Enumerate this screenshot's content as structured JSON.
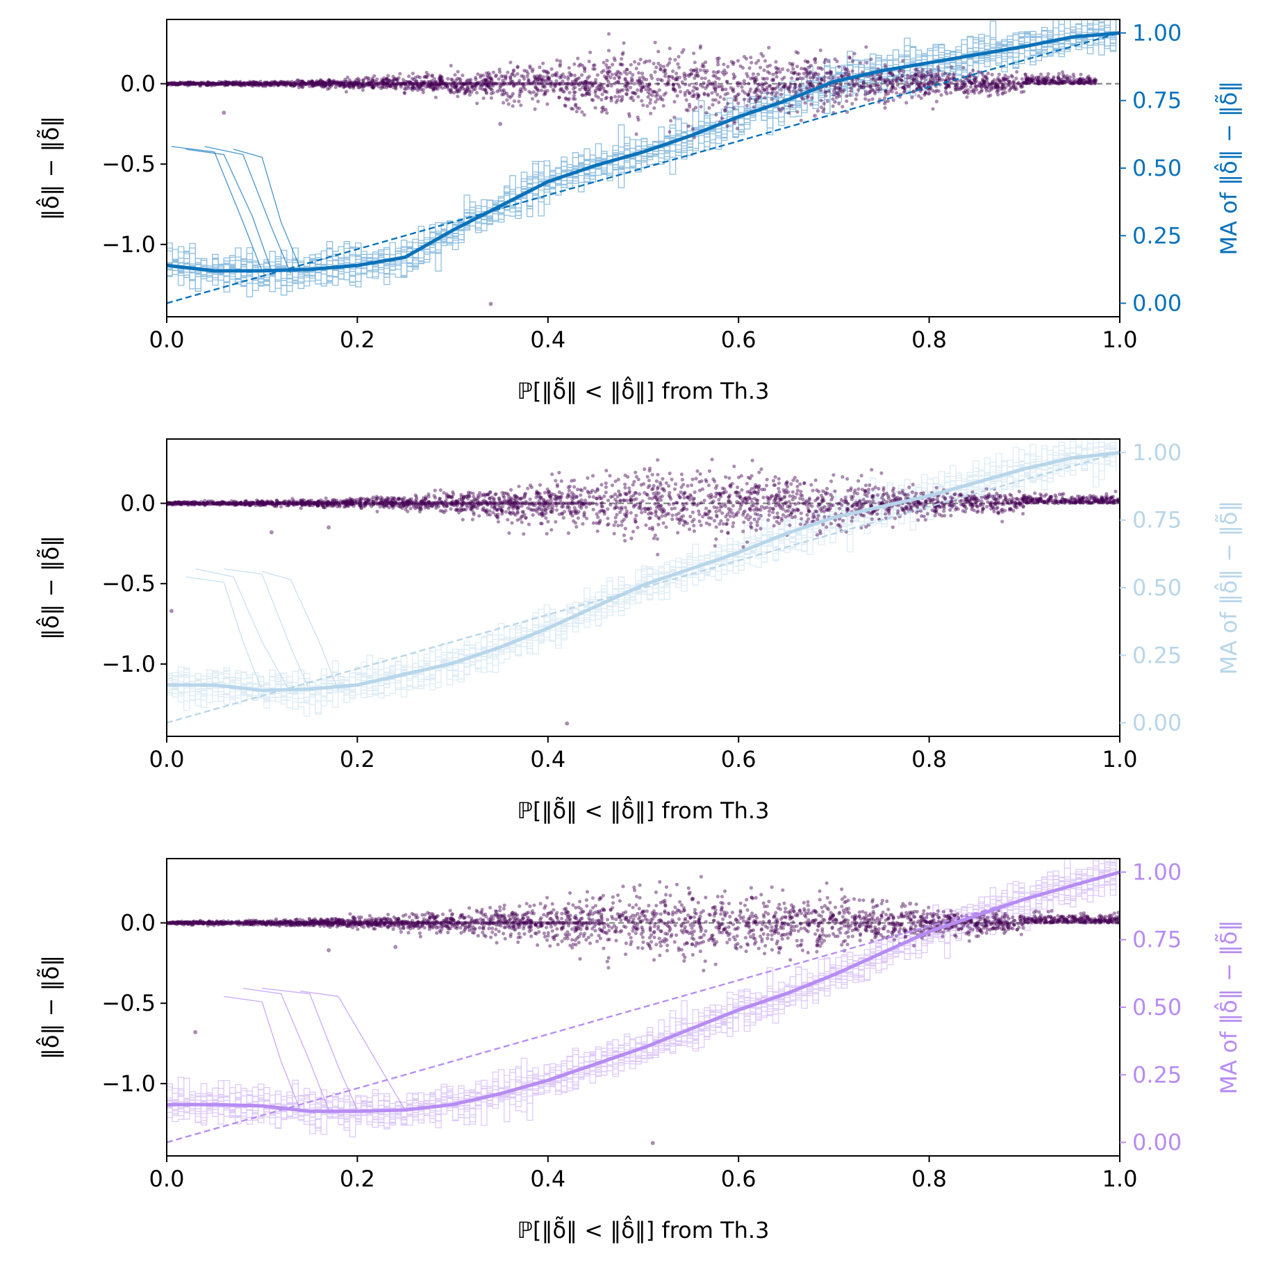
{
  "colors": {
    "scatter": "#440154",
    "ref_gray": "#808080",
    "axes": "#000000",
    "panel_colors": [
      "#0a72ba",
      "#b8d6ea",
      "#b78cf3"
    ]
  },
  "chart_data": [
    {
      "type": "scatter+line",
      "panel": 1,
      "accent": "#0a72ba",
      "xlabel": "ℙ[‖δ̃‖ < ‖δ̂‖] from Th.3",
      "ylabel_left": "‖δ̂‖ − ‖δ̃‖",
      "ylabel_right": "MA of ‖δ̂‖ − ‖δ̃‖",
      "xlim": [
        0.0,
        1.0
      ],
      "ylim_left": [
        -1.45,
        0.4
      ],
      "ylim_right": [
        -0.05,
        1.05
      ],
      "xticks": [
        "0.0",
        "0.2",
        "0.4",
        "0.6",
        "0.8",
        "1.0"
      ],
      "xtick_values": [
        0.0,
        0.2,
        0.4,
        0.6,
        0.8,
        1.0
      ],
      "yticks_left": [
        "0.0",
        "−0.5",
        "−1.0"
      ],
      "ytick_values_left": [
        0.0,
        -0.5,
        -1.0
      ],
      "yticks_right": [
        "0.00",
        "0.25",
        "0.50",
        "0.75",
        "1.00"
      ],
      "ytick_values_right": [
        0.0,
        0.25,
        0.5,
        0.75,
        1.0
      ],
      "scatter_x_max": 0.975,
      "scatter_outliers": [
        [
          0.06,
          -0.18
        ],
        [
          0.34,
          -1.37
        ],
        [
          0.35,
          -0.25
        ],
        [
          0.68,
          0.15
        ],
        [
          0.68,
          -0.2
        ]
      ],
      "ma_series": {
        "name": "moving average",
        "x": [
          0.0,
          0.05,
          0.1,
          0.15,
          0.2,
          0.25,
          0.3,
          0.35,
          0.4,
          0.45,
          0.5,
          0.55,
          0.6,
          0.65,
          0.7,
          0.75,
          0.8,
          0.85,
          0.9,
          0.95,
          1.0
        ],
        "y": [
          0.14,
          0.12,
          0.12,
          0.125,
          0.14,
          0.17,
          0.27,
          0.36,
          0.45,
          0.51,
          0.56,
          0.62,
          0.69,
          0.75,
          0.82,
          0.86,
          0.89,
          0.92,
          0.95,
          0.985,
          1.0
        ]
      },
      "reference_line": {
        "x": [
          0.0,
          1.0
        ],
        "y": [
          0.0,
          1.0
        ]
      },
      "early_curves": [
        {
          "x": [
            0.005,
            0.05,
            0.08,
            0.1
          ],
          "y": [
            0.58,
            0.56,
            0.3,
            0.12
          ]
        },
        {
          "x": [
            0.02,
            0.06,
            0.09,
            0.11
          ],
          "y": [
            0.57,
            0.55,
            0.32,
            0.12
          ]
        },
        {
          "x": [
            0.04,
            0.08,
            0.11,
            0.13
          ],
          "y": [
            0.58,
            0.55,
            0.28,
            0.11
          ]
        },
        {
          "x": [
            0.07,
            0.1,
            0.12,
            0.14
          ],
          "y": [
            0.57,
            0.54,
            0.3,
            0.13
          ]
        }
      ]
    },
    {
      "type": "scatter+line",
      "panel": 2,
      "accent": "#b8d6ea",
      "xlabel": "ℙ[‖δ̃‖ < ‖δ̂‖] from Th.3",
      "ylabel_left": "‖δ̂‖ − ‖δ̃‖",
      "ylabel_right": "MA of ‖δ̂‖ − ‖δ̃‖",
      "xlim": [
        0.0,
        1.0
      ],
      "ylim_left": [
        -1.45,
        0.4
      ],
      "ylim_right": [
        -0.05,
        1.05
      ],
      "xticks": [
        "0.0",
        "0.2",
        "0.4",
        "0.6",
        "0.8",
        "1.0"
      ],
      "xtick_values": [
        0.0,
        0.2,
        0.4,
        0.6,
        0.8,
        1.0
      ],
      "yticks_left": [
        "0.0",
        "−0.5",
        "−1.0"
      ],
      "ytick_values_left": [
        0.0,
        -0.5,
        -1.0
      ],
      "yticks_right": [
        "0.00",
        "0.25",
        "0.50",
        "0.75",
        "1.00"
      ],
      "ytick_values_right": [
        0.0,
        0.25,
        0.5,
        0.75,
        1.0
      ],
      "scatter_x_max": 1.0,
      "scatter_outliers": [
        [
          0.005,
          -0.67
        ],
        [
          0.11,
          -0.18
        ],
        [
          0.17,
          -0.15
        ],
        [
          0.42,
          -1.37
        ],
        [
          0.65,
          0.12
        ]
      ],
      "ma_series": {
        "name": "moving average",
        "x": [
          0.0,
          0.05,
          0.1,
          0.15,
          0.2,
          0.25,
          0.3,
          0.35,
          0.4,
          0.45,
          0.5,
          0.55,
          0.6,
          0.65,
          0.7,
          0.75,
          0.8,
          0.85,
          0.9,
          0.95,
          1.0
        ],
        "y": [
          0.14,
          0.14,
          0.12,
          0.125,
          0.14,
          0.18,
          0.22,
          0.28,
          0.35,
          0.43,
          0.51,
          0.57,
          0.63,
          0.7,
          0.76,
          0.8,
          0.84,
          0.89,
          0.94,
          0.98,
          1.0
        ]
      },
      "reference_line": {
        "x": [
          0.0,
          1.0
        ],
        "y": [
          0.0,
          1.0
        ]
      },
      "early_curves": [
        {
          "x": [
            0.02,
            0.06,
            0.08,
            0.1
          ],
          "y": [
            0.54,
            0.52,
            0.3,
            0.12
          ]
        },
        {
          "x": [
            0.03,
            0.07,
            0.1,
            0.13
          ],
          "y": [
            0.57,
            0.54,
            0.3,
            0.11
          ]
        },
        {
          "x": [
            0.06,
            0.1,
            0.13,
            0.15
          ],
          "y": [
            0.57,
            0.55,
            0.28,
            0.12
          ]
        },
        {
          "x": [
            0.1,
            0.13,
            0.16,
            0.18
          ],
          "y": [
            0.56,
            0.53,
            0.3,
            0.12
          ]
        }
      ]
    },
    {
      "type": "scatter+line",
      "panel": 3,
      "accent": "#b78cf3",
      "xlabel": "ℙ[‖δ̃‖ < ‖δ̂‖] from Th.3",
      "ylabel_left": "‖δ̂‖ − ‖δ̃‖",
      "ylabel_right": "MA of ‖δ̂‖ − ‖δ̃‖",
      "xlim": [
        0.0,
        1.0
      ],
      "ylim_left": [
        -1.45,
        0.4
      ],
      "ylim_right": [
        -0.05,
        1.05
      ],
      "xticks": [
        "0.0",
        "0.2",
        "0.4",
        "0.6",
        "0.8",
        "1.0"
      ],
      "xtick_values": [
        0.0,
        0.2,
        0.4,
        0.6,
        0.8,
        1.0
      ],
      "yticks_left": [
        "0.0",
        "−0.5",
        "−1.0"
      ],
      "ytick_values_left": [
        0.0,
        -0.5,
        -1.0
      ],
      "yticks_right": [
        "0.00",
        "0.25",
        "0.50",
        "0.75",
        "1.00"
      ],
      "ytick_values_right": [
        0.0,
        0.25,
        0.5,
        0.75,
        1.0
      ],
      "scatter_x_max": 1.0,
      "scatter_outliers": [
        [
          0.03,
          -0.68
        ],
        [
          0.17,
          -0.17
        ],
        [
          0.24,
          -0.15
        ],
        [
          0.51,
          -1.37
        ],
        [
          0.78,
          0.12
        ]
      ],
      "ma_series": {
        "name": "moving average",
        "x": [
          0.0,
          0.05,
          0.1,
          0.15,
          0.2,
          0.25,
          0.3,
          0.35,
          0.4,
          0.45,
          0.5,
          0.55,
          0.6,
          0.65,
          0.7,
          0.75,
          0.8,
          0.85,
          0.9,
          0.95,
          1.0
        ],
        "y": [
          0.14,
          0.14,
          0.135,
          0.115,
          0.115,
          0.12,
          0.14,
          0.18,
          0.23,
          0.29,
          0.35,
          0.42,
          0.49,
          0.55,
          0.62,
          0.7,
          0.78,
          0.84,
          0.9,
          0.95,
          1.0
        ]
      },
      "reference_line": {
        "x": [
          0.0,
          1.0
        ],
        "y": [
          0.0,
          1.0
        ]
      },
      "early_curves": [
        {
          "x": [
            0.06,
            0.1,
            0.12,
            0.14
          ],
          "y": [
            0.54,
            0.52,
            0.3,
            0.12
          ]
        },
        {
          "x": [
            0.08,
            0.12,
            0.15,
            0.17
          ],
          "y": [
            0.57,
            0.55,
            0.3,
            0.12
          ]
        },
        {
          "x": [
            0.1,
            0.15,
            0.18,
            0.2
          ],
          "y": [
            0.57,
            0.55,
            0.28,
            0.12
          ]
        },
        {
          "x": [
            0.14,
            0.18,
            0.22,
            0.25
          ],
          "y": [
            0.56,
            0.54,
            0.3,
            0.12
          ]
        }
      ]
    }
  ]
}
